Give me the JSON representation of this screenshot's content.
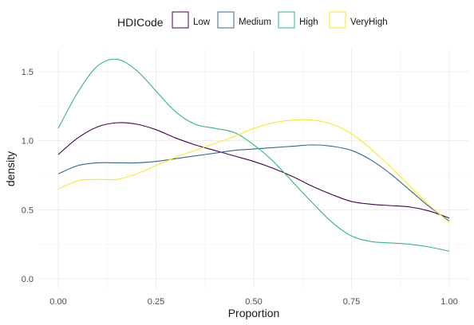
{
  "chart_data": {
    "type": "line",
    "subtype": "density",
    "xlabel": "Proportion",
    "ylabel": "density",
    "xlim": [
      0,
      1
    ],
    "ylim": [
      0,
      1.62
    ],
    "x_ticks": [
      0.0,
      0.25,
      0.5,
      0.75,
      1.0
    ],
    "x_tick_labels": [
      "0.00",
      "0.25",
      "0.50",
      "0.75",
      "1.00"
    ],
    "y_ticks": [
      0.0,
      0.5,
      1.0,
      1.5
    ],
    "y_tick_labels": [
      "0.0",
      "0.5",
      "1.0",
      "1.5"
    ],
    "grid": true,
    "legend": {
      "title": "HDICode",
      "position": "top"
    },
    "series": [
      {
        "name": "Low",
        "color": "#440154",
        "x": [
          0.0,
          0.05,
          0.1,
          0.15,
          0.2,
          0.25,
          0.3,
          0.35,
          0.4,
          0.45,
          0.5,
          0.55,
          0.6,
          0.65,
          0.7,
          0.75,
          0.8,
          0.85,
          0.9,
          0.95,
          1.0
        ],
        "y": [
          0.9,
          1.02,
          1.1,
          1.13,
          1.12,
          1.08,
          1.02,
          0.97,
          0.93,
          0.89,
          0.85,
          0.8,
          0.74,
          0.67,
          0.61,
          0.56,
          0.54,
          0.53,
          0.52,
          0.49,
          0.44
        ]
      },
      {
        "name": "Medium",
        "color": "#31688E",
        "x": [
          0.0,
          0.05,
          0.1,
          0.15,
          0.2,
          0.25,
          0.3,
          0.35,
          0.4,
          0.45,
          0.5,
          0.55,
          0.6,
          0.65,
          0.7,
          0.75,
          0.8,
          0.85,
          0.9,
          0.95,
          1.0
        ],
        "y": [
          0.76,
          0.82,
          0.84,
          0.84,
          0.84,
          0.85,
          0.87,
          0.89,
          0.91,
          0.93,
          0.94,
          0.95,
          0.96,
          0.97,
          0.96,
          0.93,
          0.86,
          0.76,
          0.64,
          0.52,
          0.42
        ]
      },
      {
        "name": "High",
        "color": "#35B779",
        "x": [
          0.0,
          0.05,
          0.1,
          0.15,
          0.2,
          0.25,
          0.3,
          0.35,
          0.4,
          0.45,
          0.5,
          0.55,
          0.6,
          0.65,
          0.7,
          0.75,
          0.8,
          0.85,
          0.9,
          0.95,
          1.0
        ],
        "y": [
          1.09,
          1.35,
          1.54,
          1.59,
          1.51,
          1.36,
          1.21,
          1.12,
          1.09,
          1.06,
          0.97,
          0.85,
          0.7,
          0.55,
          0.41,
          0.31,
          0.27,
          0.26,
          0.25,
          0.23,
          0.2
        ]
      },
      {
        "name": "VeryHigh",
        "color": "#FDE725",
        "x": [
          0.0,
          0.05,
          0.1,
          0.15,
          0.2,
          0.25,
          0.3,
          0.35,
          0.4,
          0.45,
          0.5,
          0.55,
          0.6,
          0.65,
          0.7,
          0.75,
          0.8,
          0.85,
          0.9,
          0.95,
          1.0
        ],
        "y": [
          0.65,
          0.71,
          0.72,
          0.72,
          0.76,
          0.82,
          0.88,
          0.93,
          0.98,
          1.03,
          1.09,
          1.13,
          1.15,
          1.15,
          1.12,
          1.05,
          0.94,
          0.81,
          0.67,
          0.53,
          0.41
        ]
      }
    ]
  }
}
